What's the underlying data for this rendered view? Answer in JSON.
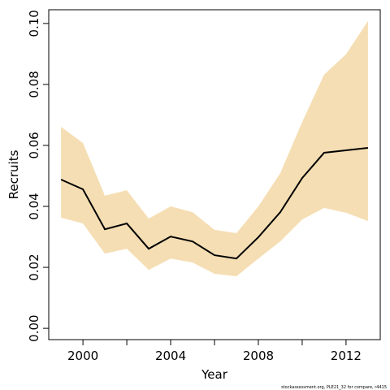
{
  "chart_data": {
    "type": "line",
    "xlabel": "Year",
    "ylabel": "Recruits",
    "footnote": "stockassessment.org, PLE21_32 for compare, r4415",
    "x": [
      1999,
      2000,
      2001,
      2002,
      2003,
      2004,
      2005,
      2006,
      2007,
      2008,
      2009,
      2010,
      2011,
      2012,
      2013
    ],
    "series": [
      {
        "color": "#000000",
        "values": [
          0.0488,
          0.0456,
          0.0325,
          0.0344,
          0.0261,
          0.0301,
          0.0285,
          0.024,
          0.0229,
          0.0299,
          0.0381,
          0.0493,
          0.0576,
          0.0584,
          0.0592
        ]
      }
    ],
    "band": {
      "color": "#f5deb3",
      "upper": [
        0.0661,
        0.0608,
        0.0435,
        0.0453,
        0.036,
        0.04,
        0.0381,
        0.0323,
        0.0312,
        0.04,
        0.0509,
        0.0677,
        0.0832,
        0.0899,
        0.1008
      ],
      "lower": [
        0.0363,
        0.0344,
        0.0245,
        0.0261,
        0.0192,
        0.0229,
        0.0216,
        0.0179,
        0.0171,
        0.0229,
        0.0285,
        0.0357,
        0.0395,
        0.0379,
        0.0352
      ]
    },
    "xlim": [
      1998.44,
      2013.56
    ],
    "xticks": [
      2000,
      2004,
      2008,
      2012
    ],
    "xminor_ticks": [
      2002,
      2006,
      2010
    ],
    "ylim": [
      -0.0037,
      0.1045
    ],
    "yticks": [
      {
        "value": 0,
        "label": "0.00"
      },
      {
        "value": 0.02,
        "label": "0.02"
      },
      {
        "value": 0.04,
        "label": "0.04"
      },
      {
        "value": 0.06,
        "label": "0.06"
      },
      {
        "value": 0.08,
        "label": "0.08"
      },
      {
        "value": 0.1,
        "label": "0.10"
      }
    ]
  }
}
